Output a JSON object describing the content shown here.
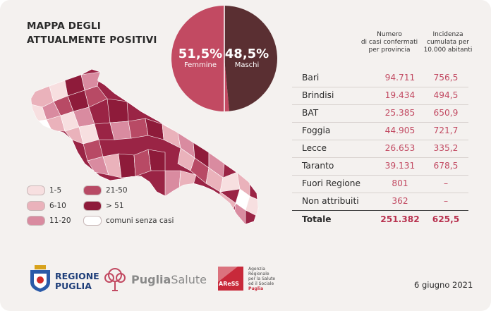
{
  "title_line1": "MAPPA DEGLI",
  "title_line2": "ATTUALMENTE POSITIVI",
  "gender": {
    "female_pct": "51,5%",
    "female_label": "Femmine",
    "male_pct": "48,5%",
    "male_label": "Maschi",
    "female_share": 51.5,
    "male_share": 48.5,
    "female_color": "#c24a62",
    "male_color": "#5a2f32"
  },
  "legend": [
    {
      "label": "1-5",
      "color": "#f7dfe0"
    },
    {
      "label": "6-10",
      "color": "#eab2bb"
    },
    {
      "label": "11-20",
      "color": "#d98ba0"
    },
    {
      "label": "21-50",
      "color": "#b84a65"
    },
    {
      "label": "> 51",
      "color": "#8e1b3a"
    },
    {
      "label": "comuni senza casi",
      "color": "#ffffff"
    }
  ],
  "table": {
    "col1_header": [
      "Numero",
      "di casi confermati",
      "per provincia"
    ],
    "col2_header": [
      "Incidenza",
      "cumulata per",
      "10.000 abitanti"
    ],
    "rows": [
      {
        "name": "Bari",
        "cases": "94.711",
        "incidence": "756,5"
      },
      {
        "name": "Brindisi",
        "cases": "19.434",
        "incidence": "494,5"
      },
      {
        "name": "BAT",
        "cases": "25.385",
        "incidence": "650,9"
      },
      {
        "name": "Foggia",
        "cases": "44.905",
        "incidence": "721,7"
      },
      {
        "name": "Lecce",
        "cases": "26.653",
        "incidence": "335,2"
      },
      {
        "name": "Taranto",
        "cases": "39.131",
        "incidence": "678,5"
      },
      {
        "name": "Fuori Regione",
        "cases": "801",
        "incidence": "–"
      },
      {
        "name": "Non attribuiti",
        "cases": "362",
        "incidence": "–"
      }
    ],
    "total": {
      "name": "Totale",
      "cases": "251.382",
      "incidence": "625,5"
    }
  },
  "footer": {
    "regione_line1": "REGIONE",
    "regione_line2": "PUGLIA",
    "puglia_salute_bold": "Puglia",
    "puglia_salute_light": "Salute",
    "aress_logo": "AReSS",
    "aress_text": [
      "Agenzia",
      "Regionale",
      "per la Salute",
      "ed il Sociale",
      "Puglia"
    ],
    "date": "6 giugno 2021"
  }
}
